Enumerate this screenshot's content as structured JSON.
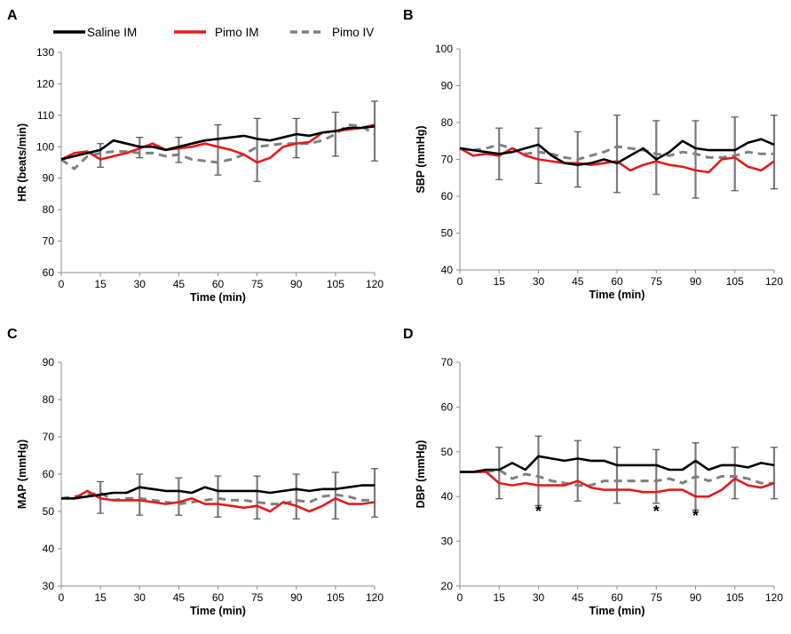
{
  "figure": {
    "panel_labels": [
      "A",
      "B",
      "C",
      "D"
    ]
  },
  "legend": [
    {
      "name": "Saline IM",
      "color": "#000000",
      "dash": "solid"
    },
    {
      "name": "Pimo IM",
      "color": "#e31b1b",
      "dash": "solid"
    },
    {
      "name": "Pimo IV",
      "color": "#808080",
      "dash": "dashed"
    }
  ],
  "chart_data": [
    {
      "type": "line",
      "title": "A",
      "xlabel": "Time (min)",
      "ylabel": "HR (beats/min)",
      "xlim": [
        0,
        120
      ],
      "ylim": [
        60,
        130
      ],
      "xticks": [
        0,
        15,
        30,
        45,
        60,
        75,
        90,
        105,
        120
      ],
      "yticks": [
        60,
        70,
        80,
        90,
        100,
        110,
        120,
        130
      ],
      "x": [
        0,
        5,
        10,
        15,
        20,
        25,
        30,
        35,
        40,
        45,
        50,
        55,
        60,
        65,
        70,
        75,
        80,
        85,
        90,
        95,
        100,
        105,
        110,
        115,
        120
      ],
      "series": [
        {
          "name": "Saline IM",
          "values": [
            96,
            97,
            98,
            99,
            102,
            101,
            100,
            100,
            99,
            100,
            101,
            102,
            102.5,
            103,
            103.5,
            102.5,
            102,
            103,
            104,
            103.5,
            104.5,
            105,
            106,
            106,
            106.5
          ]
        },
        {
          "name": "Pimo IM",
          "values": [
            96,
            98,
            98.5,
            96,
            97,
            98,
            99.5,
            101,
            99,
            99.5,
            100,
            101,
            100,
            99,
            97.5,
            95,
            96.5,
            100,
            101,
            101.5,
            104.5,
            105,
            105.5,
            106,
            107
          ]
        },
        {
          "name": "Pimo IV",
          "values": [
            96,
            93,
            97,
            98,
            98.5,
            98.5,
            98,
            98,
            97,
            97.5,
            96,
            95.5,
            95,
            96,
            97.5,
            100,
            100.5,
            101,
            101,
            101,
            102,
            104,
            107,
            106.5,
            104
          ]
        }
      ],
      "error_bars": [
        {
          "x": 15,
          "series": "Saline IM",
          "mean": 98,
          "lower": 93.5,
          "upper": 101
        },
        {
          "x": 30,
          "series": "Saline IM",
          "mean": 100,
          "lower": 96.5,
          "upper": 103
        },
        {
          "x": 45,
          "series": "Saline IM",
          "mean": 99,
          "lower": 95,
          "upper": 103
        },
        {
          "x": 60,
          "series": "Saline IM",
          "mean": 100,
          "lower": 91,
          "upper": 107
        },
        {
          "x": 75,
          "series": "Saline IM",
          "mean": 99,
          "lower": 89,
          "upper": 109
        },
        {
          "x": 90,
          "series": "Saline IM",
          "mean": 102,
          "lower": 96.5,
          "upper": 109
        },
        {
          "x": 105,
          "series": "Saline IM",
          "mean": 104,
          "lower": 97,
          "upper": 111
        },
        {
          "x": 120,
          "series": "Saline IM",
          "mean": 105,
          "lower": 95.5,
          "upper": 114.5
        }
      ]
    },
    {
      "type": "line",
      "title": "B",
      "xlabel": "Time (min)",
      "ylabel": "SBP (mmHg)",
      "xlim": [
        0,
        120
      ],
      "ylim": [
        40,
        100
      ],
      "xticks": [
        0,
        15,
        30,
        45,
        60,
        75,
        90,
        105,
        120
      ],
      "yticks": [
        40,
        50,
        60,
        70,
        80,
        90,
        100
      ],
      "x": [
        0,
        5,
        10,
        15,
        20,
        25,
        30,
        35,
        40,
        45,
        50,
        55,
        60,
        65,
        70,
        75,
        80,
        85,
        90,
        95,
        100,
        105,
        110,
        115,
        120
      ],
      "series": [
        {
          "name": "Saline IM",
          "values": [
            73,
            72.5,
            72,
            71.5,
            72,
            73,
            74,
            71,
            69,
            68.5,
            69,
            70,
            69,
            71,
            73,
            70,
            72,
            75,
            73,
            72.5,
            72.5,
            72.5,
            74.5,
            75.5,
            74
          ]
        },
        {
          "name": "Pimo IM",
          "values": [
            73,
            71,
            71.5,
            71,
            73,
            71,
            70,
            69.5,
            69,
            69,
            68.5,
            69,
            69.5,
            67,
            68.5,
            69.5,
            68.5,
            68,
            67,
            66.5,
            70,
            70.5,
            68,
            67,
            69.5
          ]
        },
        {
          "name": "Pimo IV",
          "values": [
            73,
            72.5,
            73,
            74,
            73,
            71.5,
            72,
            71.5,
            70.5,
            70,
            71,
            72,
            73.5,
            73,
            72.5,
            71.5,
            71,
            72,
            71.5,
            70.5,
            70.5,
            71,
            72,
            71.5,
            71.5
          ]
        }
      ],
      "error_bars": [
        {
          "x": 15,
          "series": "Saline IM",
          "mean": 71,
          "lower": 64.5,
          "upper": 78.5
        },
        {
          "x": 30,
          "series": "Saline IM",
          "mean": 71,
          "lower": 63.5,
          "upper": 78.5
        },
        {
          "x": 45,
          "series": "Saline IM",
          "mean": 69.5,
          "lower": 62.5,
          "upper": 77.5
        },
        {
          "x": 60,
          "series": "Saline IM",
          "mean": 70.5,
          "lower": 61,
          "upper": 82
        },
        {
          "x": 75,
          "series": "Saline IM",
          "mean": 70.5,
          "lower": 60.5,
          "upper": 80.5
        },
        {
          "x": 90,
          "series": "Saline IM",
          "mean": 70.5,
          "lower": 59.5,
          "upper": 80.5
        },
        {
          "x": 105,
          "series": "Saline IM",
          "mean": 71,
          "lower": 61.5,
          "upper": 81.5
        },
        {
          "x": 120,
          "series": "Saline IM",
          "mean": 72,
          "lower": 62,
          "upper": 82
        }
      ]
    },
    {
      "type": "line",
      "title": "C",
      "xlabel": "Time (min)",
      "ylabel": "MAP (mmHg)",
      "xlim": [
        0,
        120
      ],
      "ylim": [
        30,
        90
      ],
      "xticks": [
        0,
        15,
        30,
        45,
        60,
        75,
        90,
        105,
        120
      ],
      "yticks": [
        30,
        40,
        50,
        60,
        70,
        80,
        90
      ],
      "x": [
        0,
        5,
        10,
        15,
        20,
        25,
        30,
        35,
        40,
        45,
        50,
        55,
        60,
        65,
        70,
        75,
        80,
        85,
        90,
        95,
        100,
        105,
        110,
        115,
        120
      ],
      "series": [
        {
          "name": "Saline IM",
          "values": [
            53.5,
            53.5,
            54,
            54.5,
            55,
            55,
            56.5,
            56,
            55.5,
            55.5,
            55,
            56.5,
            55.5,
            55.5,
            55.5,
            55.5,
            55,
            55.5,
            56,
            55.5,
            56,
            56,
            56.5,
            57,
            57
          ]
        },
        {
          "name": "Pimo IM",
          "values": [
            53.5,
            53.5,
            55.5,
            53.5,
            53,
            53,
            53,
            52.5,
            52,
            52.5,
            53.5,
            52,
            52,
            51.5,
            51,
            51.5,
            50,
            52.5,
            51.5,
            50,
            51.5,
            53.5,
            52,
            52,
            52.5
          ]
        },
        {
          "name": "Pimo IV",
          "values": [
            53.5,
            54,
            54.5,
            55,
            53,
            53.5,
            53.5,
            53,
            52.5,
            52,
            52.5,
            53,
            53.5,
            53,
            53,
            52.5,
            52,
            52,
            53,
            52.5,
            54,
            54.5,
            54,
            53,
            53
          ]
        }
      ],
      "error_bars": [
        {
          "x": 15,
          "series": "Saline IM",
          "mean": 54,
          "lower": 49.5,
          "upper": 58
        },
        {
          "x": 30,
          "series": "Saline IM",
          "mean": 54.5,
          "lower": 49,
          "upper": 60
        },
        {
          "x": 45,
          "series": "Saline IM",
          "mean": 54,
          "lower": 49,
          "upper": 59
        },
        {
          "x": 60,
          "series": "Saline IM",
          "mean": 54,
          "lower": 48.5,
          "upper": 59.5
        },
        {
          "x": 75,
          "series": "Saline IM",
          "mean": 53.5,
          "lower": 48,
          "upper": 59.5
        },
        {
          "x": 90,
          "series": "Saline IM",
          "mean": 54,
          "lower": 48,
          "upper": 60
        },
        {
          "x": 105,
          "series": "Saline IM",
          "mean": 54.5,
          "lower": 48,
          "upper": 60.5
        },
        {
          "x": 120,
          "series": "Saline IM",
          "mean": 55,
          "lower": 48.5,
          "upper": 61.5
        }
      ]
    },
    {
      "type": "line",
      "title": "D",
      "xlabel": "Time (min)",
      "ylabel": "DBP (mmHg)",
      "xlim": [
        0,
        120
      ],
      "ylim": [
        20,
        70
      ],
      "xticks": [
        0,
        15,
        30,
        45,
        60,
        75,
        90,
        105,
        120
      ],
      "yticks": [
        20,
        30,
        40,
        50,
        60,
        70
      ],
      "x": [
        0,
        5,
        10,
        15,
        20,
        25,
        30,
        35,
        40,
        45,
        50,
        55,
        60,
        65,
        70,
        75,
        80,
        85,
        90,
        95,
        100,
        105,
        110,
        115,
        120
      ],
      "series": [
        {
          "name": "Saline IM",
          "values": [
            45.5,
            45.5,
            46,
            46,
            47.5,
            46,
            49,
            48.5,
            48,
            48.5,
            48,
            48,
            47,
            47,
            47,
            47,
            46,
            46,
            48,
            46,
            47,
            47,
            46.5,
            47.5,
            47
          ]
        },
        {
          "name": "Pimo IM",
          "values": [
            45.5,
            45.5,
            45.5,
            43,
            42.5,
            43,
            42.5,
            42.5,
            42.5,
            43.5,
            42,
            41.5,
            41.5,
            41.5,
            41,
            41,
            41.5,
            41.5,
            40,
            40,
            41.5,
            44,
            42.5,
            42,
            43
          ]
        },
        {
          "name": "Pimo IV",
          "values": [
            45.5,
            45.5,
            45.5,
            46,
            44,
            45,
            44.5,
            43.5,
            43,
            42.5,
            42.5,
            43.5,
            43.5,
            43.5,
            43.5,
            43.5,
            44,
            43,
            44.5,
            43.5,
            44.5,
            44.5,
            44,
            43,
            43
          ]
        }
      ],
      "error_bars": [
        {
          "x": 15,
          "series": "Saline IM",
          "mean": 45,
          "lower": 39.5,
          "upper": 51
        },
        {
          "x": 30,
          "series": "Saline IM",
          "mean": 45.5,
          "lower": 38,
          "upper": 53.5
        },
        {
          "x": 45,
          "series": "Saline IM",
          "mean": 45.5,
          "lower": 39,
          "upper": 52.5
        },
        {
          "x": 60,
          "series": "Saline IM",
          "mean": 44.5,
          "lower": 38.5,
          "upper": 51
        },
        {
          "x": 75,
          "series": "Saline IM",
          "mean": 44,
          "lower": 38.5,
          "upper": 50.5
        },
        {
          "x": 90,
          "series": "Saline IM",
          "mean": 44,
          "lower": 37,
          "upper": 52
        },
        {
          "x": 105,
          "series": "Saline IM",
          "mean": 45,
          "lower": 39.5,
          "upper": 51
        },
        {
          "x": 120,
          "series": "Saline IM",
          "mean": 44.5,
          "lower": 39.5,
          "upper": 51
        }
      ],
      "annotations": [
        {
          "text": "*",
          "x": 30,
          "y": 37.5
        },
        {
          "text": "*",
          "x": 75,
          "y": 37.5
        },
        {
          "text": "*",
          "x": 90,
          "y": 36.5
        }
      ]
    }
  ]
}
